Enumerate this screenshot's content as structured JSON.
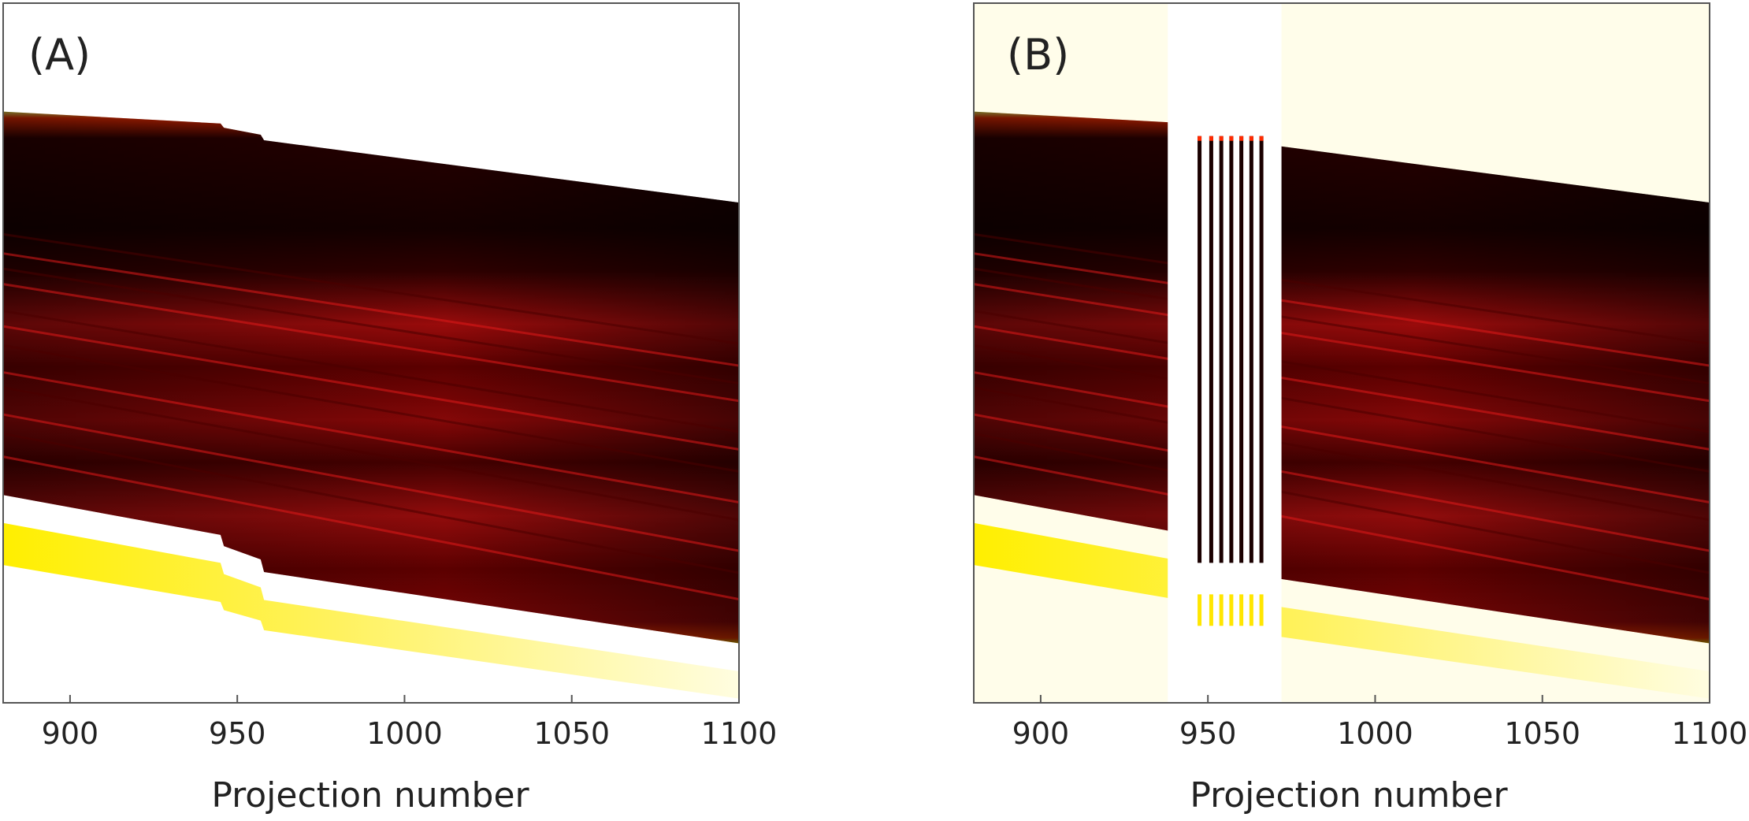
{
  "chart_data": [
    {
      "type": "heatmap",
      "panel_label": "(A)",
      "xlabel": "Projection number",
      "ylabel": "",
      "xlim": [
        880,
        1100
      ],
      "x_ticks": [
        900,
        950,
        1000,
        1050,
        1100
      ],
      "colormap": "hot (black-red-yellow-white)",
      "band": {
        "x": [
          880,
          945,
          946,
          957,
          958,
          1100
        ],
        "top_fraction": [
          0.155,
          0.172,
          0.178,
          0.188,
          0.196,
          0.285
        ],
        "bottom_fraction": [
          0.703,
          0.76,
          0.776,
          0.795,
          0.813,
          0.915
        ]
      },
      "discontinuity_x": [
        945,
        957
      ],
      "background": "#ffffff"
    },
    {
      "type": "heatmap",
      "panel_label": "(B)",
      "xlabel": "Projection number",
      "ylabel": "",
      "xlim": [
        880,
        1100
      ],
      "x_ticks": [
        900,
        950,
        1000,
        1050,
        1100
      ],
      "colormap": "hot (black-red-yellow-white)",
      "band": {
        "x": [
          880,
          945,
          946,
          957,
          958,
          1100
        ],
        "top_fraction": [
          0.155,
          0.172,
          0.178,
          0.188,
          0.196,
          0.285
        ],
        "bottom_fraction": [
          0.703,
          0.76,
          0.776,
          0.795,
          0.813,
          0.915
        ]
      },
      "gap_x": [
        938,
        972
      ],
      "gap_line_x": [
        947.5,
        951,
        954,
        957,
        960,
        963,
        966
      ],
      "background": "#fffdea"
    }
  ]
}
